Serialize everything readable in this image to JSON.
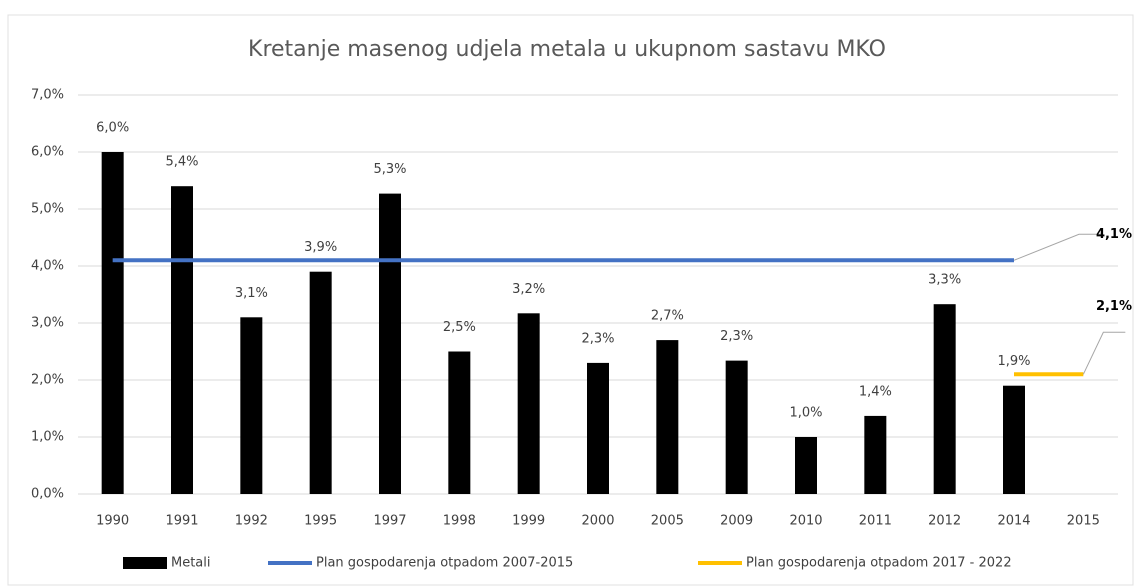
{
  "chart_data": {
    "type": "bar",
    "title": "Kretanje masenog udjela metala u ukupnom sastavu MKO",
    "categories": [
      "1990",
      "1991",
      "1992",
      "1995",
      "1997",
      "1998",
      "1999",
      "2000",
      "2005",
      "2009",
      "2010",
      "2011",
      "2012",
      "2014",
      "2015"
    ],
    "series": [
      {
        "name": "Metali",
        "type": "bar",
        "color": "#000000",
        "values": [
          6.0,
          5.4,
          3.1,
          3.9,
          5.27,
          2.5,
          3.17,
          2.3,
          2.7,
          2.34,
          1.0,
          1.37,
          3.33,
          1.9,
          null
        ],
        "value_labels": [
          "6,0%",
          "5,4%",
          "3,1%",
          "3,9%",
          "5,3%",
          "2,5%",
          "3,2%",
          "2,3%",
          "2,7%",
          "2,3%",
          "1,0%",
          "1,4%",
          "3,3%",
          "1,9%",
          null
        ]
      },
      {
        "name": "Plan gospodarenja otpadom 2007-2015",
        "type": "line",
        "color": "#4472c4",
        "values": [
          4.1,
          4.1,
          4.1,
          4.1,
          4.1,
          4.1,
          4.1,
          4.1,
          4.1,
          4.1,
          4.1,
          4.1,
          4.1,
          4.1,
          null
        ],
        "value_labels": [
          null,
          null,
          null,
          null,
          null,
          null,
          null,
          null,
          null,
          null,
          null,
          null,
          null,
          "4,1%",
          null
        ]
      },
      {
        "name": "Plan gospodarenja otpadom 2017 - 2022",
        "type": "line",
        "color": "#ffc000",
        "values": [
          null,
          null,
          null,
          null,
          null,
          null,
          null,
          null,
          null,
          null,
          null,
          null,
          null,
          2.1,
          2.1
        ],
        "value_labels": [
          null,
          null,
          null,
          null,
          null,
          null,
          null,
          null,
          null,
          null,
          null,
          null,
          null,
          null,
          "2,1%"
        ]
      }
    ],
    "ylim": [
      0,
      7
    ],
    "yticks": [
      {
        "value": 0,
        "label": "0,0%"
      },
      {
        "value": 1,
        "label": "1,0%"
      },
      {
        "value": 2,
        "label": "2,0%"
      },
      {
        "value": 3,
        "label": "3,0%"
      },
      {
        "value": 4,
        "label": "4,0%"
      },
      {
        "value": 5,
        "label": "5,0%"
      },
      {
        "value": 6,
        "label": "6,0%"
      },
      {
        "value": 7,
        "label": "7,0%"
      }
    ],
    "grid": true
  }
}
